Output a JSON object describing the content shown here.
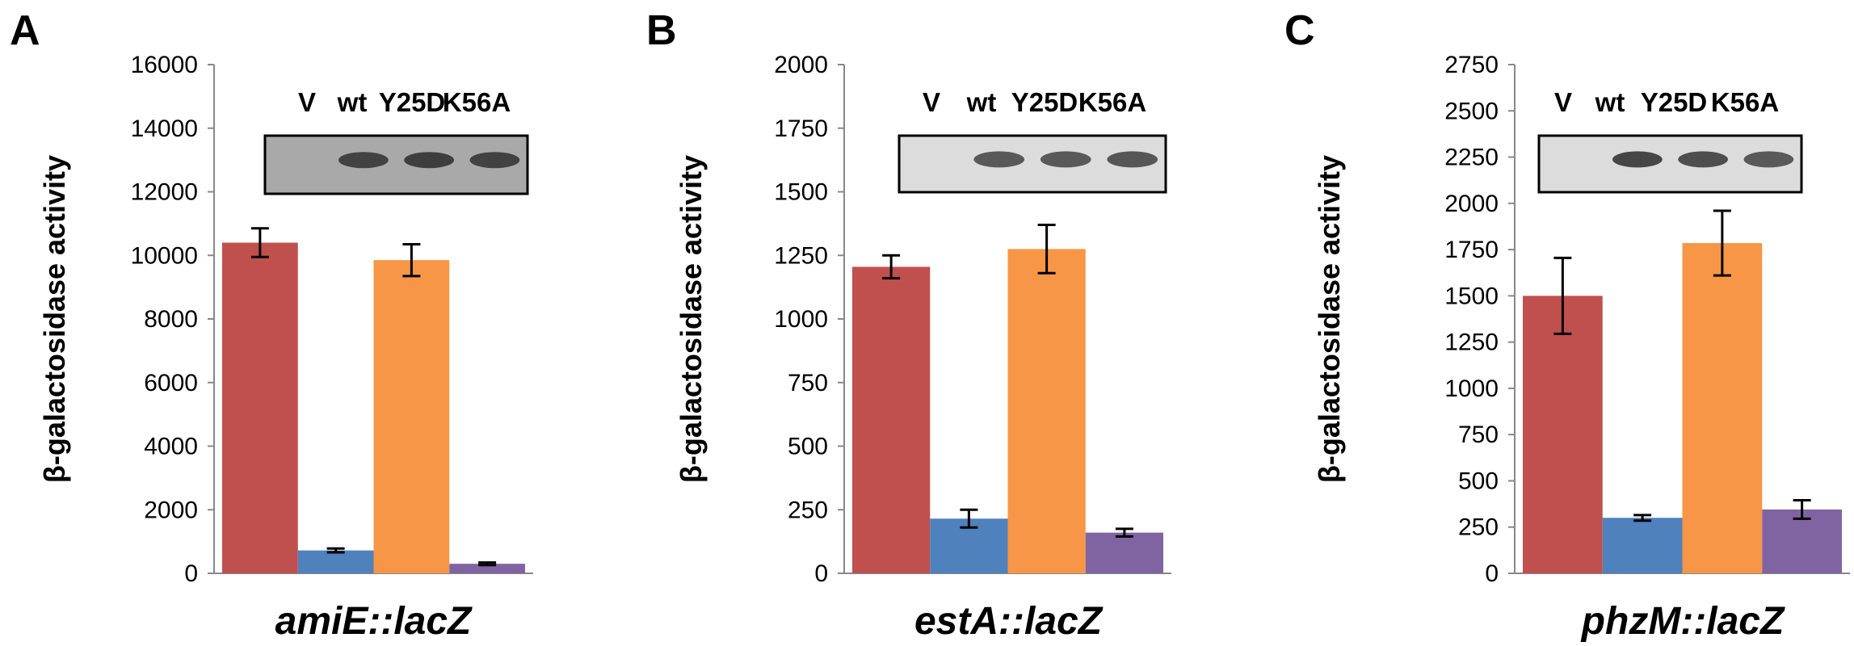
{
  "chart_data": [
    {
      "type": "bar",
      "panel_letter": "A",
      "categories": [
        "V",
        "wt",
        "Y25D",
        "K56A"
      ],
      "values": [
        10400,
        720,
        9850,
        300
      ],
      "errors": [
        450,
        60,
        500,
        40
      ],
      "colors": [
        "#c0504d",
        "#4f81bd",
        "#f79646",
        "#8064a2"
      ],
      "xlabel": "amiE::lacZ",
      "ylabel": "β-galactosidase activity",
      "ylim": [
        0,
        16000
      ],
      "yticks": [
        0,
        2000,
        4000,
        6000,
        8000,
        10000,
        12000,
        14000,
        16000
      ],
      "blot_labels": [
        "V",
        "wt",
        "Y25D",
        "K56A"
      ],
      "blot_band_intensity": [
        0,
        0.8,
        0.85,
        0.8
      ],
      "grid": false,
      "legend": "none"
    },
    {
      "type": "bar",
      "panel_letter": "B",
      "categories": [
        "V",
        "wt",
        "Y25D",
        "K56A"
      ],
      "values": [
        1205,
        215,
        1275,
        160
      ],
      "errors": [
        45,
        35,
        95,
        15
      ],
      "colors": [
        "#c0504d",
        "#4f81bd",
        "#f79646",
        "#8064a2"
      ],
      "xlabel": "estA::lacZ",
      "ylabel": "β-galactosidase activity",
      "ylim": [
        0,
        2000
      ],
      "yticks": [
        0,
        250,
        500,
        750,
        1000,
        1250,
        1500,
        1750,
        2000
      ],
      "blot_labels": [
        "V",
        "wt",
        "Y25D",
        "K56A"
      ],
      "blot_band_intensity": [
        0,
        0.6,
        0.6,
        0.65
      ],
      "grid": false,
      "legend": "none"
    },
    {
      "type": "bar",
      "panel_letter": "C",
      "categories": [
        "V",
        "wt",
        "Y25D",
        "K56A"
      ],
      "values": [
        1500,
        300,
        1785,
        345
      ],
      "errors": [
        205,
        15,
        175,
        50
      ],
      "colors": [
        "#c0504d",
        "#4f81bd",
        "#f79646",
        "#8064a2"
      ],
      "xlabel": "phzM::lacZ",
      "ylabel": "β-galactosidase activity",
      "ylim": [
        0,
        2750
      ],
      "yticks": [
        0,
        250,
        500,
        750,
        1000,
        1250,
        1500,
        1750,
        2000,
        2250,
        2500,
        2750
      ],
      "blot_labels": [
        "V",
        "wt",
        "Y25D",
        "K56A"
      ],
      "blot_band_intensity": [
        0,
        0.85,
        0.75,
        0.6
      ],
      "grid": false,
      "legend": "none"
    }
  ]
}
